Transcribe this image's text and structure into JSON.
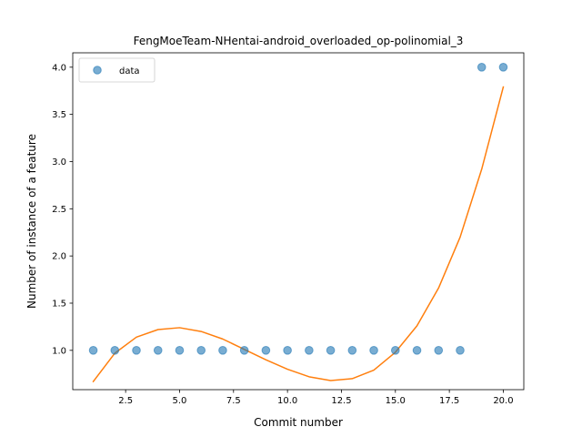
{
  "chart_data": {
    "type": "scatter",
    "title": "FengMoeTeam-NHentai-android_overloaded_op-polinomial_3",
    "xlabel": "Commit number",
    "ylabel": "Number of instance of a feature",
    "xlim": [
      0.05,
      20.95
    ],
    "ylim": [
      0.5835,
      4.1525
    ],
    "x_ticks": [
      2.5,
      5.0,
      7.5,
      10.0,
      12.5,
      15.0,
      17.5,
      20.0
    ],
    "x_tick_labels": [
      "2.5",
      "5.0",
      "7.5",
      "10.0",
      "12.5",
      "15.0",
      "17.5",
      "20.0"
    ],
    "y_ticks": [
      1.0,
      1.5,
      2.0,
      2.5,
      3.0,
      3.5,
      4.0
    ],
    "y_tick_labels": [
      "1.0",
      "1.5",
      "2.0",
      "2.5",
      "3.0",
      "3.5",
      "4.0"
    ],
    "grid": false,
    "legend": {
      "placement": "top-left",
      "entries": [
        "data"
      ]
    },
    "series": [
      {
        "name": "data",
        "kind": "scatter",
        "color": "#1f77b4",
        "x": [
          1,
          2,
          3,
          4,
          5,
          6,
          7,
          8,
          9,
          10,
          11,
          12,
          13,
          14,
          15,
          16,
          17,
          18,
          19,
          20
        ],
        "y": [
          1,
          1,
          1,
          1,
          1,
          1,
          1,
          1,
          1,
          1,
          1,
          1,
          1,
          1,
          1,
          1,
          1,
          1,
          4,
          4
        ]
      },
      {
        "kind": "line",
        "color": "#ff7f0e",
        "x": [
          1,
          2,
          3,
          4,
          5,
          6,
          7,
          8,
          9,
          10,
          11,
          12,
          13,
          14,
          15,
          16,
          17,
          18,
          19,
          20
        ],
        "y": [
          0.67,
          0.97,
          1.14,
          1.22,
          1.24,
          1.2,
          1.12,
          1.01,
          0.9,
          0.8,
          0.72,
          0.68,
          0.7,
          0.79,
          0.98,
          1.26,
          1.66,
          2.2,
          2.92,
          3.79
        ]
      }
    ]
  }
}
